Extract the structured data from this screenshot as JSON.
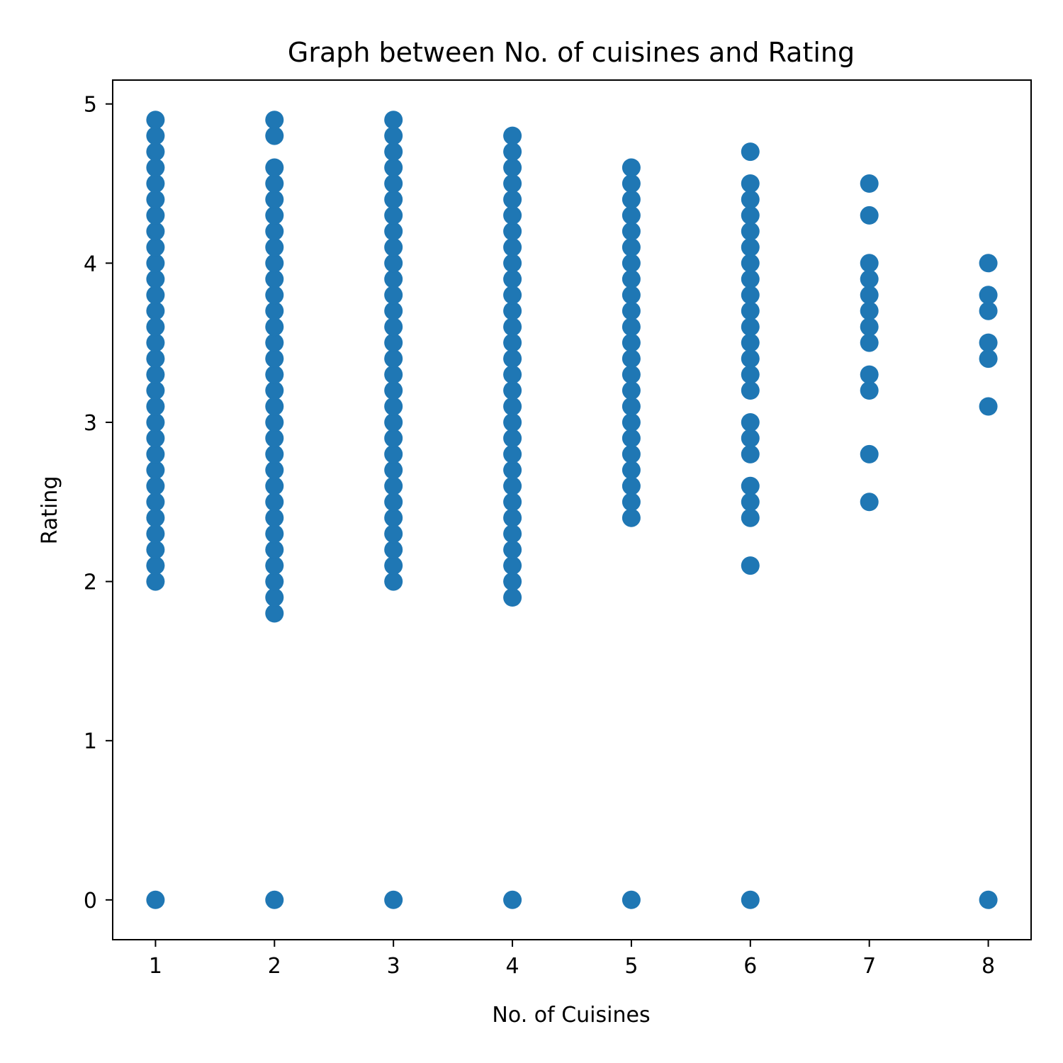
{
  "chart_data": {
    "type": "scatter",
    "title": "Graph between No. of cuisines and Rating",
    "xlabel": "No. of Cuisines",
    "ylabel": "Rating",
    "xlim": [
      0.64,
      8.36
    ],
    "ylim": [
      -0.25,
      5.15
    ],
    "xticks": [
      1,
      2,
      3,
      4,
      5,
      6,
      7,
      8
    ],
    "yticks": [
      0,
      1,
      2,
      3,
      4,
      5
    ],
    "grid": false,
    "marker_color": "#1f77b4",
    "series": [
      {
        "points": [
          [
            1,
            0
          ],
          [
            1,
            2.0
          ],
          [
            1,
            2.1
          ],
          [
            1,
            2.2
          ],
          [
            1,
            2.3
          ],
          [
            1,
            2.4
          ],
          [
            1,
            2.5
          ],
          [
            1,
            2.6
          ],
          [
            1,
            2.7
          ],
          [
            1,
            2.8
          ],
          [
            1,
            2.9
          ],
          [
            1,
            3.0
          ],
          [
            1,
            3.1
          ],
          [
            1,
            3.2
          ],
          [
            1,
            3.3
          ],
          [
            1,
            3.4
          ],
          [
            1,
            3.5
          ],
          [
            1,
            3.6
          ],
          [
            1,
            3.7
          ],
          [
            1,
            3.8
          ],
          [
            1,
            3.9
          ],
          [
            1,
            4.0
          ],
          [
            1,
            4.1
          ],
          [
            1,
            4.2
          ],
          [
            1,
            4.3
          ],
          [
            1,
            4.4
          ],
          [
            1,
            4.5
          ],
          [
            1,
            4.6
          ],
          [
            1,
            4.7
          ],
          [
            1,
            4.8
          ],
          [
            1,
            4.9
          ],
          [
            2,
            0
          ],
          [
            2,
            1.8
          ],
          [
            2,
            1.9
          ],
          [
            2,
            2.0
          ],
          [
            2,
            2.1
          ],
          [
            2,
            2.2
          ],
          [
            2,
            2.3
          ],
          [
            2,
            2.4
          ],
          [
            2,
            2.5
          ],
          [
            2,
            2.6
          ],
          [
            2,
            2.7
          ],
          [
            2,
            2.8
          ],
          [
            2,
            2.9
          ],
          [
            2,
            3.0
          ],
          [
            2,
            3.1
          ],
          [
            2,
            3.2
          ],
          [
            2,
            3.3
          ],
          [
            2,
            3.4
          ],
          [
            2,
            3.5
          ],
          [
            2,
            3.6
          ],
          [
            2,
            3.7
          ],
          [
            2,
            3.8
          ],
          [
            2,
            3.9
          ],
          [
            2,
            4.0
          ],
          [
            2,
            4.1
          ],
          [
            2,
            4.2
          ],
          [
            2,
            4.3
          ],
          [
            2,
            4.4
          ],
          [
            2,
            4.5
          ],
          [
            2,
            4.6
          ],
          [
            2,
            4.8
          ],
          [
            2,
            4.9
          ],
          [
            3,
            0
          ],
          [
            3,
            2.0
          ],
          [
            3,
            2.1
          ],
          [
            3,
            2.2
          ],
          [
            3,
            2.3
          ],
          [
            3,
            2.4
          ],
          [
            3,
            2.5
          ],
          [
            3,
            2.6
          ],
          [
            3,
            2.7
          ],
          [
            3,
            2.8
          ],
          [
            3,
            2.9
          ],
          [
            3,
            3.0
          ],
          [
            3,
            3.1
          ],
          [
            3,
            3.2
          ],
          [
            3,
            3.3
          ],
          [
            3,
            3.4
          ],
          [
            3,
            3.5
          ],
          [
            3,
            3.6
          ],
          [
            3,
            3.7
          ],
          [
            3,
            3.8
          ],
          [
            3,
            3.9
          ],
          [
            3,
            4.0
          ],
          [
            3,
            4.1
          ],
          [
            3,
            4.2
          ],
          [
            3,
            4.3
          ],
          [
            3,
            4.4
          ],
          [
            3,
            4.5
          ],
          [
            3,
            4.6
          ],
          [
            3,
            4.7
          ],
          [
            3,
            4.8
          ],
          [
            3,
            4.9
          ],
          [
            4,
            0
          ],
          [
            4,
            1.9
          ],
          [
            4,
            2.0
          ],
          [
            4,
            2.1
          ],
          [
            4,
            2.2
          ],
          [
            4,
            2.3
          ],
          [
            4,
            2.4
          ],
          [
            4,
            2.5
          ],
          [
            4,
            2.6
          ],
          [
            4,
            2.7
          ],
          [
            4,
            2.8
          ],
          [
            4,
            2.9
          ],
          [
            4,
            3.0
          ],
          [
            4,
            3.1
          ],
          [
            4,
            3.2
          ],
          [
            4,
            3.3
          ],
          [
            4,
            3.4
          ],
          [
            4,
            3.5
          ],
          [
            4,
            3.6
          ],
          [
            4,
            3.7
          ],
          [
            4,
            3.8
          ],
          [
            4,
            3.9
          ],
          [
            4,
            4.0
          ],
          [
            4,
            4.1
          ],
          [
            4,
            4.2
          ],
          [
            4,
            4.3
          ],
          [
            4,
            4.4
          ],
          [
            4,
            4.5
          ],
          [
            4,
            4.6
          ],
          [
            4,
            4.7
          ],
          [
            4,
            4.8
          ],
          [
            5,
            0
          ],
          [
            5,
            2.4
          ],
          [
            5,
            2.5
          ],
          [
            5,
            2.6
          ],
          [
            5,
            2.7
          ],
          [
            5,
            2.8
          ],
          [
            5,
            2.9
          ],
          [
            5,
            3.0
          ],
          [
            5,
            3.1
          ],
          [
            5,
            3.2
          ],
          [
            5,
            3.3
          ],
          [
            5,
            3.4
          ],
          [
            5,
            3.5
          ],
          [
            5,
            3.6
          ],
          [
            5,
            3.7
          ],
          [
            5,
            3.8
          ],
          [
            5,
            3.9
          ],
          [
            5,
            4.0
          ],
          [
            5,
            4.1
          ],
          [
            5,
            4.2
          ],
          [
            5,
            4.3
          ],
          [
            5,
            4.4
          ],
          [
            5,
            4.5
          ],
          [
            5,
            4.6
          ],
          [
            6,
            0
          ],
          [
            6,
            2.1
          ],
          [
            6,
            2.4
          ],
          [
            6,
            2.5
          ],
          [
            6,
            2.6
          ],
          [
            6,
            2.8
          ],
          [
            6,
            2.9
          ],
          [
            6,
            3.0
          ],
          [
            6,
            3.2
          ],
          [
            6,
            3.3
          ],
          [
            6,
            3.4
          ],
          [
            6,
            3.5
          ],
          [
            6,
            3.6
          ],
          [
            6,
            3.7
          ],
          [
            6,
            3.8
          ],
          [
            6,
            3.9
          ],
          [
            6,
            4.0
          ],
          [
            6,
            4.1
          ],
          [
            6,
            4.2
          ],
          [
            6,
            4.3
          ],
          [
            6,
            4.4
          ],
          [
            6,
            4.5
          ],
          [
            6,
            4.7
          ],
          [
            7,
            2.5
          ],
          [
            7,
            2.8
          ],
          [
            7,
            3.2
          ],
          [
            7,
            3.3
          ],
          [
            7,
            3.5
          ],
          [
            7,
            3.6
          ],
          [
            7,
            3.7
          ],
          [
            7,
            3.8
          ],
          [
            7,
            3.9
          ],
          [
            7,
            4.0
          ],
          [
            7,
            4.3
          ],
          [
            7,
            4.5
          ],
          [
            8,
            0
          ],
          [
            8,
            3.1
          ],
          [
            8,
            3.4
          ],
          [
            8,
            3.5
          ],
          [
            8,
            3.7
          ],
          [
            8,
            3.8
          ],
          [
            8,
            4.0
          ]
        ]
      }
    ]
  }
}
